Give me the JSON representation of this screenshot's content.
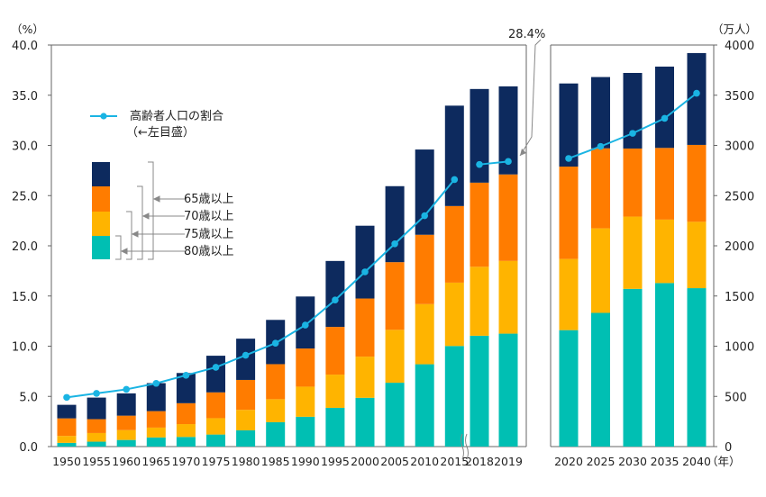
{
  "chart_data": [
    {
      "type": "bar",
      "stacked": true,
      "categories": [
        "1950",
        "1955",
        "1960",
        "1965",
        "1970",
        "1975",
        "1980",
        "1985",
        "1990",
        "1995",
        "2000",
        "2005",
        "2010",
        "2015",
        "2018",
        "2019"
      ],
      "y_unit": "（%）",
      "ylim": [
        0,
        40
      ],
      "yticks": [
        "0.0",
        "5.0",
        "10.0",
        "15.0",
        "20.0",
        "25.0",
        "30.0",
        "35.0",
        "40.0"
      ],
      "y2_unit": "（万人）",
      "y2lim": [
        0,
        4000
      ],
      "y2ticks": [
        "0",
        "500",
        "1000",
        "1500",
        "2000",
        "2500",
        "3000",
        "3500",
        "4000"
      ],
      "series": [
        {
          "name": "80歳以上",
          "color": "#00BFB3",
          "values": [
            37,
            49,
            66,
            91,
            96,
            120,
            162,
            243,
            297,
            386,
            486,
            636,
            820,
            1002,
            1104,
            1125
          ]
        },
        {
          "name": "75歳以上",
          "color": "#FFB400",
          "values": [
            69,
            86,
            98,
            98,
            128,
            163,
            204,
            229,
            300,
            331,
            410,
            527,
            599,
            631,
            687,
            724
          ]
        },
        {
          "name": "70歳以上",
          "color": "#FF7C00",
          "values": [
            175,
            138,
            144,
            164,
            208,
            257,
            298,
            349,
            380,
            475,
            579,
            674,
            691,
            763,
            838,
            862
          ]
        },
        {
          "name": "65歳以上",
          "color": "#0D2A5E",
          "values": [
            135,
            215,
            222,
            279,
            301,
            365,
            411,
            441,
            518,
            657,
            725,
            757,
            849,
            1000,
            933,
            877
          ]
        }
      ],
      "line": {
        "name": "高齢者人口の割合",
        "color": "#1AB4E3",
        "values": [
          4.9,
          5.3,
          5.7,
          6.3,
          7.1,
          7.9,
          9.1,
          10.3,
          12.1,
          14.6,
          17.4,
          20.2,
          23.0,
          26.6,
          28.1,
          28.4
        ]
      },
      "annotation": "28.4%",
      "legend": {
        "line_label": "高齢者人口の割合",
        "line_sub": "（←左目盛）",
        "bracket_labels": [
          "65歳以上",
          "70歳以上",
          "75歳以上",
          "80歳以上"
        ]
      }
    },
    {
      "type": "bar",
      "stacked": true,
      "categories": [
        "2020",
        "2025",
        "2030",
        "2035",
        "2040"
      ],
      "x_unit": "（年）",
      "ylim": [
        0,
        4000
      ],
      "series": [
        {
          "name": "80歳以上",
          "color": "#00BFB3",
          "values": [
            1160,
            1332,
            1571,
            1629,
            1578
          ]
        },
        {
          "name": "75歳以上",
          "color": "#FFB400",
          "values": [
            709,
            842,
            720,
            632,
            661
          ]
        },
        {
          "name": "70歳以上",
          "color": "#FF7C00",
          "values": [
            920,
            797,
            678,
            714,
            766
          ]
        },
        {
          "name": "65歳以上",
          "color": "#0D2A5E",
          "values": [
            828,
            710,
            753,
            810,
            915
          ]
        }
      ],
      "line": {
        "name": "高齢者人口の割合",
        "color": "#1AB4E3",
        "values": [
          28.7,
          29.9,
          31.2,
          32.7,
          35.2
        ]
      }
    }
  ]
}
